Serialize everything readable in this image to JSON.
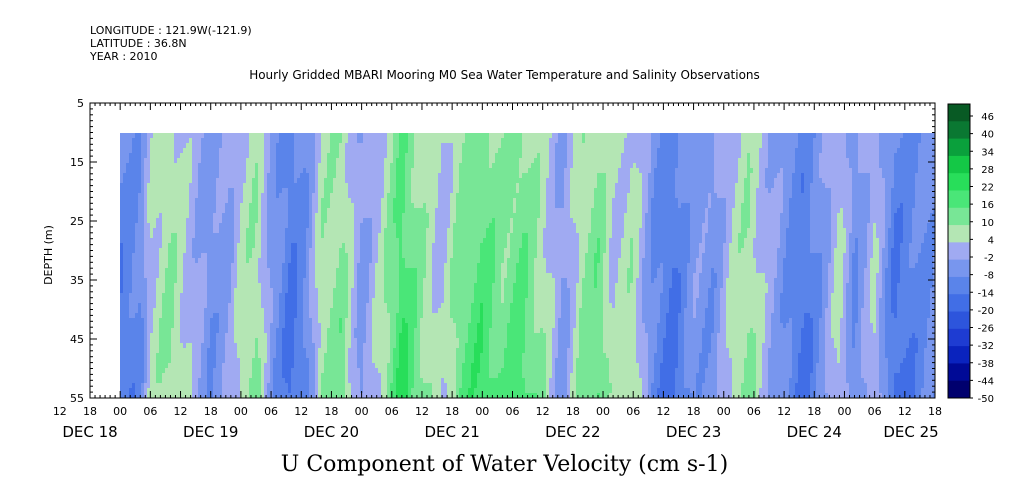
{
  "header": {
    "longitude": "LONGITUDE : 121.9W(-121.9)",
    "latitude": "LATITUDE : 36.8N",
    "year": "YEAR : 2010"
  },
  "chart_data": {
    "type": "heatmap",
    "title": "Hourly Gridded MBARI Mooring M0 Sea Water Temperature and Salinity Observations",
    "xlabel": "U Component of Water Velocity (cm s-1)",
    "ylabel": "DEPTH (m)",
    "ylim": [
      55,
      5
    ],
    "yticks": [
      5,
      15,
      25,
      35,
      45,
      55
    ],
    "data_depth_range": [
      10,
      55
    ],
    "x_hour_range": [
      0,
      168
    ],
    "data_start_hour": 6,
    "x_hour_ticks": [
      "12",
      "18",
      "00",
      "06",
      "12",
      "18",
      "00",
      "06",
      "12",
      "18",
      "00",
      "06",
      "12",
      "18",
      "00",
      "06",
      "12",
      "18",
      "00",
      "06",
      "12",
      "18",
      "00",
      "06",
      "12",
      "18",
      "00",
      "06",
      "12",
      "18",
      "00",
      "06",
      "12",
      "18",
      "00",
      "06",
      "12"
    ],
    "x_day_labels": [
      {
        "label": "DEC 18",
        "hour": 0
      },
      {
        "label": "DEC 19",
        "hour": 24
      },
      {
        "label": "DEC 20",
        "hour": 48
      },
      {
        "label": "DEC 21",
        "hour": 72
      },
      {
        "label": "DEC 22",
        "hour": 96
      },
      {
        "label": "DEC 23",
        "hour": 120
      },
      {
        "label": "DEC 24",
        "hour": 144
      },
      {
        "label": "DEC 25",
        "hour": 168
      }
    ],
    "colorbar": {
      "levels": [
        -50,
        -44,
        -38,
        -32,
        -26,
        -20,
        -14,
        -8,
        -2,
        4,
        10,
        16,
        22,
        28,
        34,
        40,
        46
      ],
      "labels": [
        "46",
        "40",
        "34",
        "28",
        "22",
        "16",
        "10",
        "4",
        "-2",
        "-8",
        "-14",
        "-20",
        "-26",
        "-32",
        "-38",
        "-44",
        "-50"
      ],
      "colors": {
        "-50": "#00006e",
        "-44": "#000a96",
        "-38": "#0a23be",
        "-32": "#1e3cd2",
        "-26": "#2d55dc",
        "-20": "#416ee6",
        "-14": "#5a84ea",
        "-8": "#7896ee",
        "-2": "#a0aaf2",
        "4": "#b4e6b4",
        "10": "#78e696",
        "16": "#4ae678",
        "22": "#28de5a",
        "28": "#14c846",
        "34": "#0aa03c",
        "40": "#0a7832",
        "46": "#085a24"
      }
    },
    "u_velocity_profile": [
      {
        "hour": 6,
        "value": -12
      },
      {
        "hour": 10,
        "value": -8
      },
      {
        "hour": 12,
        "value": 4
      },
      {
        "hour": 16,
        "value": 10
      },
      {
        "hour": 20,
        "value": 2
      },
      {
        "hour": 24,
        "value": -6
      },
      {
        "hour": 28,
        "value": -2
      },
      {
        "hour": 30,
        "value": 6
      },
      {
        "hour": 33,
        "value": 10
      },
      {
        "hour": 36,
        "value": -4
      },
      {
        "hour": 40,
        "value": -14
      },
      {
        "hour": 43,
        "value": -8
      },
      {
        "hour": 46,
        "value": 8
      },
      {
        "hour": 50,
        "value": 12
      },
      {
        "hour": 54,
        "value": -4
      },
      {
        "hour": 58,
        "value": 6
      },
      {
        "hour": 62,
        "value": 20
      },
      {
        "hour": 66,
        "value": 10
      },
      {
        "hour": 70,
        "value": 2
      },
      {
        "hour": 74,
        "value": 14
      },
      {
        "hour": 78,
        "value": 18
      },
      {
        "hour": 82,
        "value": 12
      },
      {
        "hour": 86,
        "value": 16
      },
      {
        "hour": 90,
        "value": 8
      },
      {
        "hour": 94,
        "value": -4
      },
      {
        "hour": 98,
        "value": 10
      },
      {
        "hour": 101,
        "value": 14
      },
      {
        "hour": 104,
        "value": 4
      },
      {
        "hour": 108,
        "value": 8
      },
      {
        "hour": 112,
        "value": -8
      },
      {
        "hour": 116,
        "value": -14
      },
      {
        "hour": 120,
        "value": -4
      },
      {
        "hour": 124,
        "value": -6
      },
      {
        "hour": 128,
        "value": 6
      },
      {
        "hour": 131,
        "value": 10
      },
      {
        "hour": 134,
        "value": 2
      },
      {
        "hour": 138,
        "value": -6
      },
      {
        "hour": 142,
        "value": -14
      },
      {
        "hour": 146,
        "value": -4
      },
      {
        "hour": 149,
        "value": 6
      },
      {
        "hour": 152,
        "value": -8
      },
      {
        "hour": 156,
        "value": 4
      },
      {
        "hour": 160,
        "value": -14
      },
      {
        "hour": 164,
        "value": -10
      },
      {
        "hour": 168,
        "value": -6
      }
    ]
  }
}
